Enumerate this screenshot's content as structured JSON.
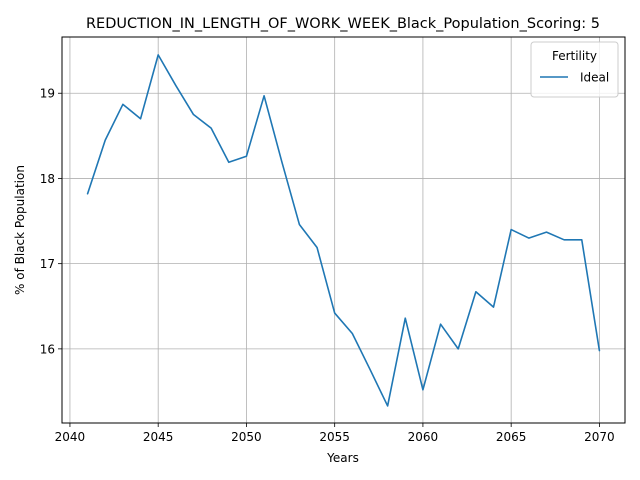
{
  "chart_data": {
    "type": "line",
    "title": "REDUCTION_IN_LENGTH_OF_WORK_WEEK_Black_Population_Scoring: 5",
    "xlabel": "Years",
    "ylabel": "% of Black Population",
    "xlim": [
      2039.55,
      2071.45
    ],
    "ylim": [
      15.13,
      19.66
    ],
    "xticks": [
      2040,
      2045,
      2050,
      2055,
      2060,
      2065,
      2070
    ],
    "yticks": [
      16,
      17,
      18,
      19
    ],
    "grid": true,
    "legend": {
      "title": "Fertility",
      "placement": "top-right"
    },
    "series": [
      {
        "name": "Ideal",
        "color": "#1f77b4",
        "x": [
          2041,
          2042,
          2043,
          2044,
          2045,
          2046,
          2047,
          2048,
          2049,
          2050,
          2051,
          2052,
          2053,
          2054,
          2055,
          2056,
          2057,
          2058,
          2059,
          2060,
          2061,
          2062,
          2063,
          2064,
          2065,
          2066,
          2067,
          2068,
          2069,
          2070
        ],
        "y": [
          17.82,
          18.45,
          18.87,
          18.7,
          19.45,
          19.09,
          18.75,
          18.59,
          18.19,
          18.26,
          18.97,
          18.2,
          17.46,
          17.19,
          16.42,
          16.18,
          15.76,
          15.33,
          16.36,
          15.52,
          16.29,
          16.0,
          16.67,
          16.49,
          17.4,
          17.3,
          17.37,
          17.28,
          17.28,
          15.98
        ]
      }
    ]
  }
}
